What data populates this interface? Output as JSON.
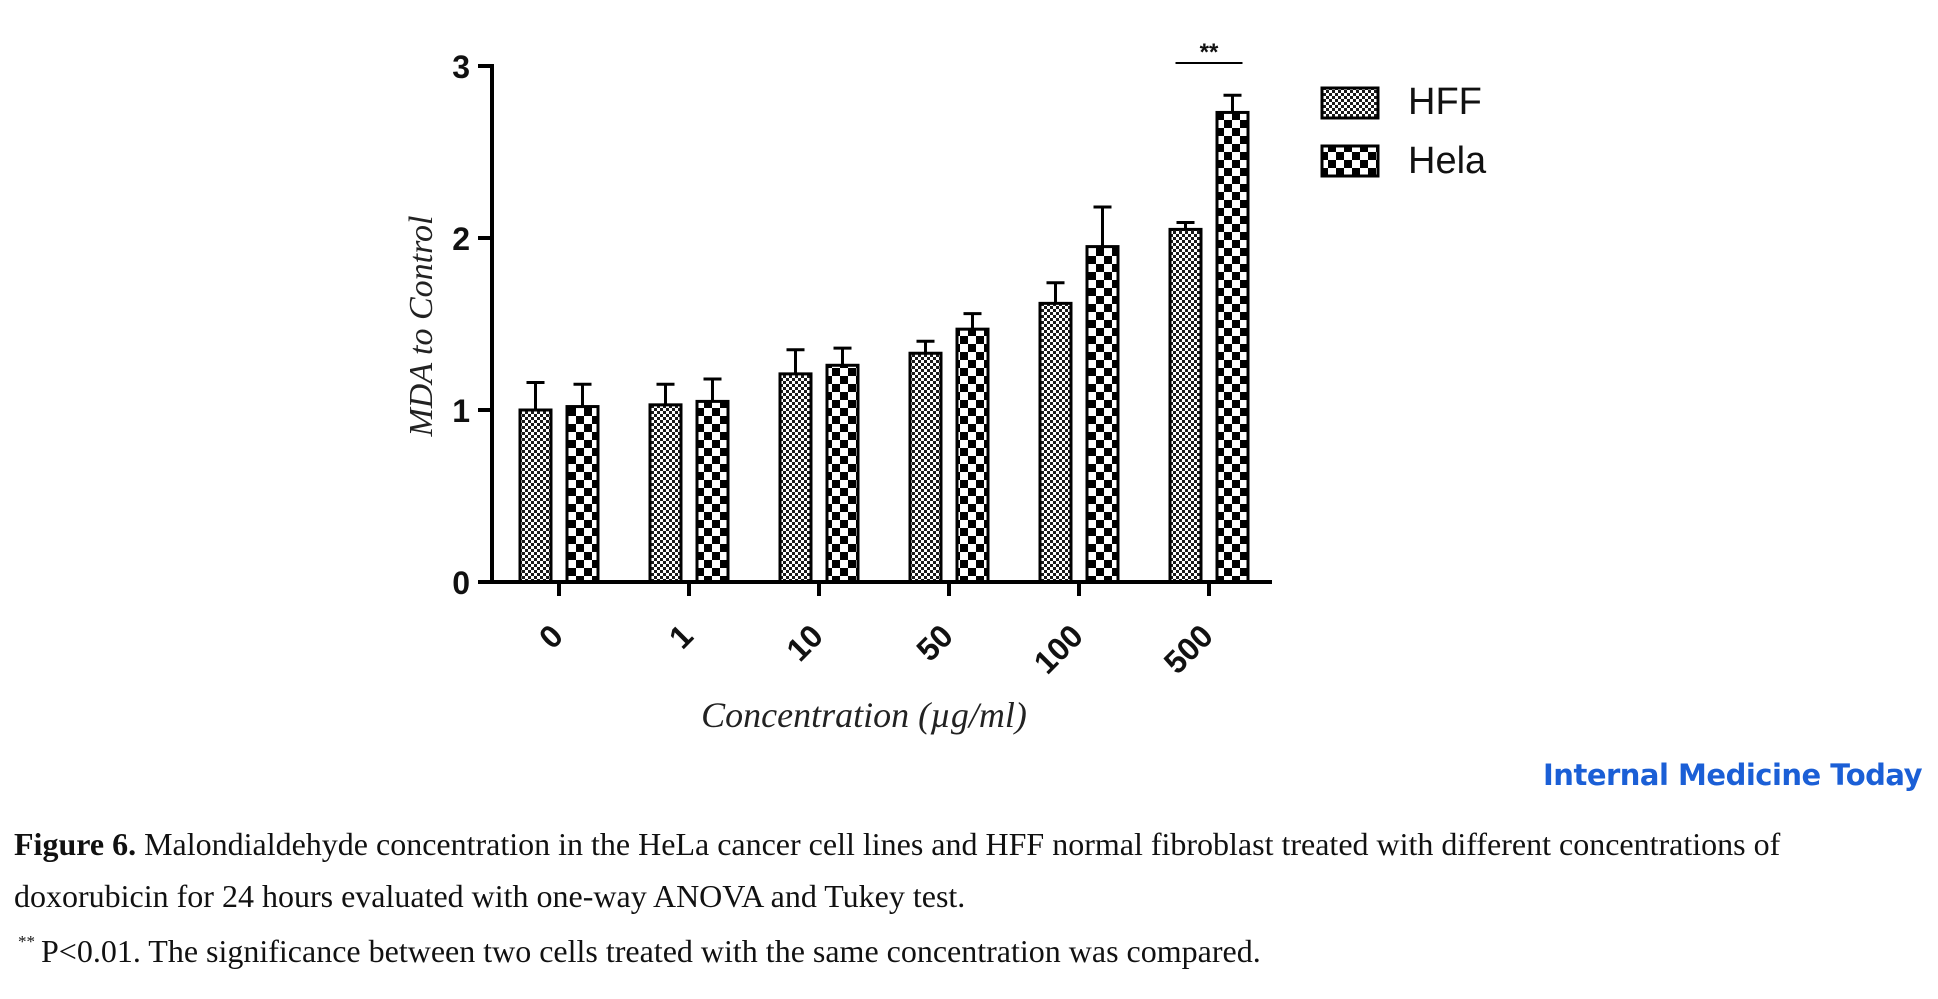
{
  "chart_data": {
    "type": "bar",
    "categories": [
      "0",
      "1",
      "10",
      "50",
      "100",
      "500"
    ],
    "series": [
      {
        "name": "HFF",
        "values": [
          1.0,
          1.03,
          1.21,
          1.33,
          1.62,
          2.05
        ],
        "errors": [
          0.16,
          0.12,
          0.14,
          0.07,
          0.12,
          0.04
        ],
        "pattern": "fine-checker"
      },
      {
        "name": "Hela",
        "values": [
          1.02,
          1.05,
          1.26,
          1.47,
          1.95,
          2.73
        ],
        "errors": [
          0.13,
          0.13,
          0.1,
          0.09,
          0.23,
          0.1
        ],
        "pattern": "coarse-checker"
      }
    ],
    "xlabel": "Concentration (µg/ml)",
    "ylabel": "MDA to Control",
    "yticks": [
      "0",
      "1",
      "2",
      "3"
    ],
    "ylim": [
      0,
      3
    ],
    "legend_position": "top-right",
    "annotation": {
      "text": "**",
      "category": "500"
    }
  },
  "brand": "Internal Medicine Today",
  "caption": {
    "label": "Figure 6.",
    "text": " Malondialdehyde concentration in the HeLa cancer cell lines and HFF normal fibroblast treated with different concentrations of doxorubicin for 24 hours evaluated with one-way ANOVA and Tukey test."
  },
  "note": {
    "marker": "**",
    "text": "P<0.01. The significance between two cells treated with the same concentration was compared."
  }
}
